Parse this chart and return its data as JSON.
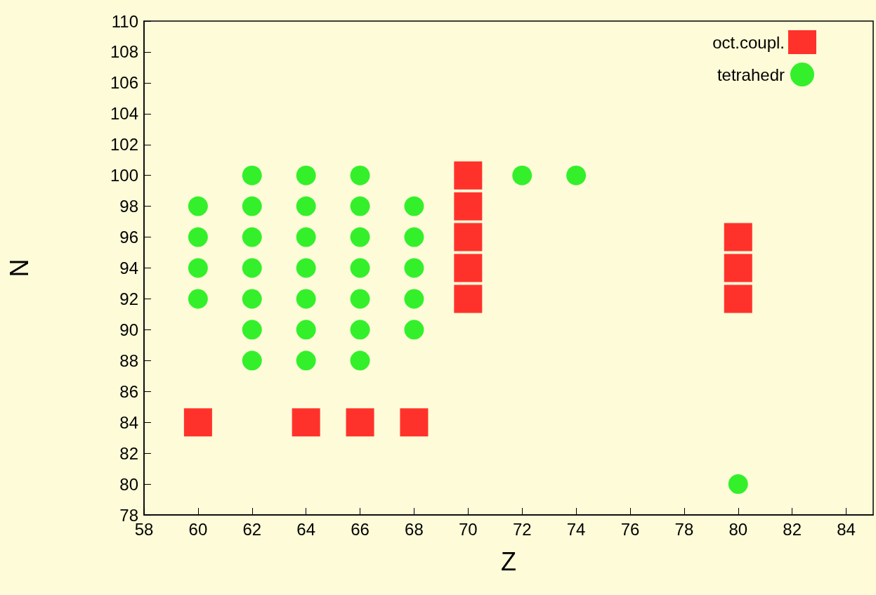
{
  "chart_data": {
    "type": "scatter",
    "xlabel": "Z",
    "ylabel": "N",
    "xlim": [
      58,
      85
    ],
    "ylim": [
      78,
      110
    ],
    "xticks": [
      58,
      60,
      62,
      64,
      66,
      68,
      70,
      72,
      74,
      76,
      78,
      80,
      82,
      84
    ],
    "yticks": [
      78,
      80,
      82,
      84,
      86,
      88,
      90,
      92,
      94,
      96,
      98,
      100,
      102,
      104,
      106,
      108,
      110
    ],
    "grid": false,
    "legend": "top right",
    "series": [
      {
        "name": "oct.coupl.",
        "color": "#ff0000",
        "marker": "square",
        "x": [
          60,
          64,
          66,
          68,
          70,
          70,
          70,
          70,
          70,
          80,
          80,
          80
        ],
        "values": [
          84,
          84,
          84,
          84,
          92,
          94,
          96,
          98,
          100,
          92,
          94,
          96
        ]
      },
      {
        "name": "tetrahedr",
        "color": "#00ee00",
        "marker": "circle",
        "x": [
          60,
          60,
          60,
          60,
          62,
          62,
          62,
          62,
          62,
          62,
          62,
          64,
          64,
          64,
          64,
          64,
          64,
          64,
          66,
          66,
          66,
          66,
          66,
          66,
          66,
          68,
          68,
          68,
          68,
          68,
          72,
          74,
          80
        ],
        "values": [
          92,
          94,
          96,
          98,
          88,
          90,
          92,
          94,
          96,
          98,
          100,
          88,
          90,
          92,
          94,
          96,
          98,
          100,
          88,
          90,
          92,
          94,
          96,
          98,
          100,
          90,
          92,
          94,
          96,
          98,
          100,
          100,
          80
        ]
      }
    ]
  }
}
